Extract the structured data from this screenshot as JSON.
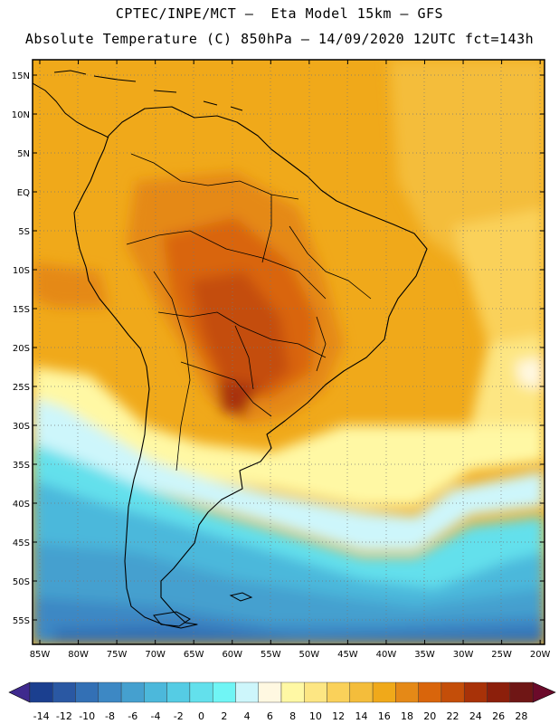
{
  "header": {
    "line1": "CPTEC/INPE/MCT –  Eta Model 15km – GFS",
    "line2": "Absolute Temperature (C) 850hPa – 14/09/2020 12UTC fct=143h"
  },
  "map": {
    "lat_labels": [
      "15N",
      "10N",
      "5N",
      "EQ",
      "5S",
      "10S",
      "15S",
      "20S",
      "25S",
      "30S",
      "35S",
      "40S",
      "45S",
      "50S",
      "55S"
    ],
    "lon_labels": [
      "85W",
      "80W",
      "75W",
      "70W",
      "65W",
      "60W",
      "55W",
      "50W",
      "45W",
      "40W",
      "35W",
      "30W",
      "25W",
      "20W"
    ]
  },
  "colorbar": {
    "labels": [
      "-14",
      "-12",
      "-10",
      "-8",
      "-6",
      "-4",
      "-2",
      "0",
      "2",
      "4",
      "6",
      "8",
      "10",
      "12",
      "14",
      "16",
      "18",
      "20",
      "22",
      "24",
      "26",
      "28"
    ],
    "colors": [
      "#1b3f8f",
      "#2a58a3",
      "#3370b5",
      "#3d88c4",
      "#45a0cf",
      "#4cb8db",
      "#55cce4",
      "#63e0ec",
      "#70f5f5",
      "#cdf6fb",
      "#fff8e1",
      "#fff8a4",
      "#fde683",
      "#fad15a",
      "#f4bd3b",
      "#f0a91a",
      "#e58917",
      "#d9650b",
      "#c44e09",
      "#a83208",
      "#8c1f0b",
      "#6f1615"
    ],
    "arrow_left_color": "#3f2a8e",
    "arrow_right_color": "#6b0a2a"
  }
}
